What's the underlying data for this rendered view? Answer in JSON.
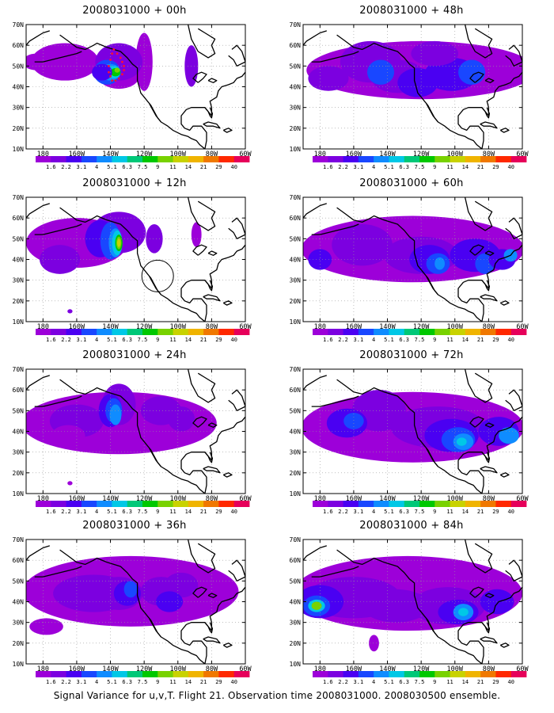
{
  "lat_labels": [
    "70N",
    "60N",
    "50N",
    "40N",
    "30N",
    "20N",
    "10N"
  ],
  "lon_labels": [
    "180",
    "160W",
    "140W",
    "120W",
    "100W",
    "80W",
    "60W"
  ],
  "colorbar": {
    "levels": [
      "1.6",
      "2.2",
      "3.1",
      "4",
      "5.1",
      "6.3",
      "7.5",
      "9",
      "11",
      "14",
      "21",
      "29",
      "40"
    ],
    "colors": [
      "#9d00d9",
      "#7c00e0",
      "#4a00f2",
      "#1947ff",
      "#0f8cff",
      "#00c8e6",
      "#00c878",
      "#00c800",
      "#78d200",
      "#c8d200",
      "#f0b400",
      "#f07800",
      "#ff2800",
      "#e6005a"
    ]
  },
  "panels": [
    {
      "id": "p00",
      "title": "2008031000 + 00h"
    },
    {
      "id": "p48",
      "title": "2008031000 + 48h"
    },
    {
      "id": "p12",
      "title": "2008031000 + 12h"
    },
    {
      "id": "p60",
      "title": "2008031000 + 60h"
    },
    {
      "id": "p24",
      "title": "2008031000 + 24h"
    },
    {
      "id": "p72",
      "title": "2008031000 + 72h"
    },
    {
      "id": "p36",
      "title": "2008031000 + 36h"
    },
    {
      "id": "p84",
      "title": "2008031000 + 84h"
    }
  ],
  "caption": "Signal Variance for u,v,T. Flight 21. Observation time 2008031000. 2008030500 ensemble."
}
